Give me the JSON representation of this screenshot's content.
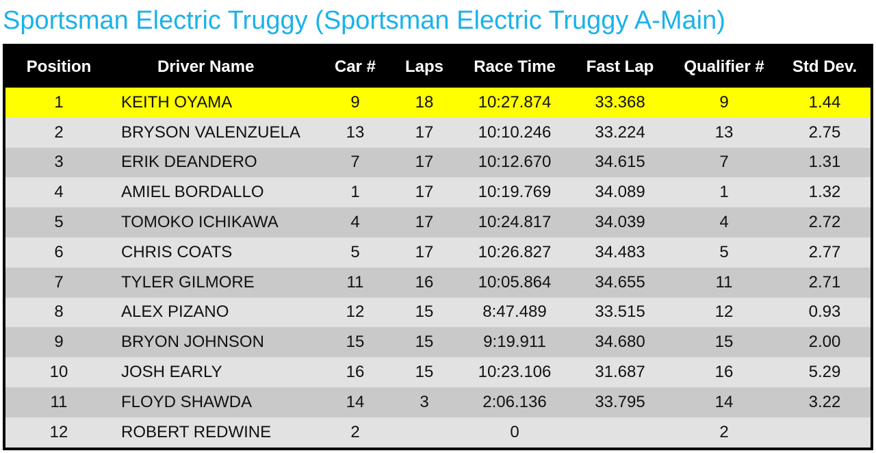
{
  "header": {
    "title": "Sportsman Electric Truggy (Sportsman Electric Truggy A-Main)"
  },
  "table": {
    "columns": [
      "Position",
      "Driver Name",
      "Car #",
      "Laps",
      "Race Time",
      "Fast Lap",
      "Qualifier #",
      "Std Dev."
    ],
    "rows": [
      [
        "1",
        "KEITH OYAMA",
        "9",
        "18",
        "10:27.874",
        "33.368",
        "9",
        "1.44"
      ],
      [
        "2",
        "BRYSON VALENZUELA",
        "13",
        "17",
        "10:10.246",
        "33.224",
        "13",
        "2.75"
      ],
      [
        "3",
        "ERIK DEANDERO",
        "7",
        "17",
        "10:12.670",
        "34.615",
        "7",
        "1.31"
      ],
      [
        "4",
        "AMIEL BORDALLO",
        "1",
        "17",
        "10:19.769",
        "34.089",
        "1",
        "1.32"
      ],
      [
        "5",
        "TOMOKO ICHIKAWA",
        "4",
        "17",
        "10:24.817",
        "34.039",
        "4",
        "2.72"
      ],
      [
        "6",
        "CHRIS COATS",
        "5",
        "17",
        "10:26.827",
        "34.483",
        "5",
        "2.77"
      ],
      [
        "7",
        "TYLER GILMORE",
        "11",
        "16",
        "10:05.864",
        "34.655",
        "11",
        "2.71"
      ],
      [
        "8",
        "ALEX PIZANO",
        "12",
        "15",
        "8:47.489",
        "33.515",
        "12",
        "0.93"
      ],
      [
        "9",
        "BRYON JOHNSON",
        "15",
        "15",
        "9:19.911",
        "34.680",
        "15",
        "2.00"
      ],
      [
        "10",
        "JOSH EARLY",
        "16",
        "15",
        "10:23.106",
        "31.687",
        "16",
        "5.29"
      ],
      [
        "11",
        "FLOYD SHAWDA",
        "14",
        "3",
        "2:06.136",
        "33.795",
        "14",
        "3.22"
      ],
      [
        "12",
        "ROBERT REDWINE",
        "2",
        null,
        "0",
        null,
        "2",
        null
      ]
    ]
  }
}
